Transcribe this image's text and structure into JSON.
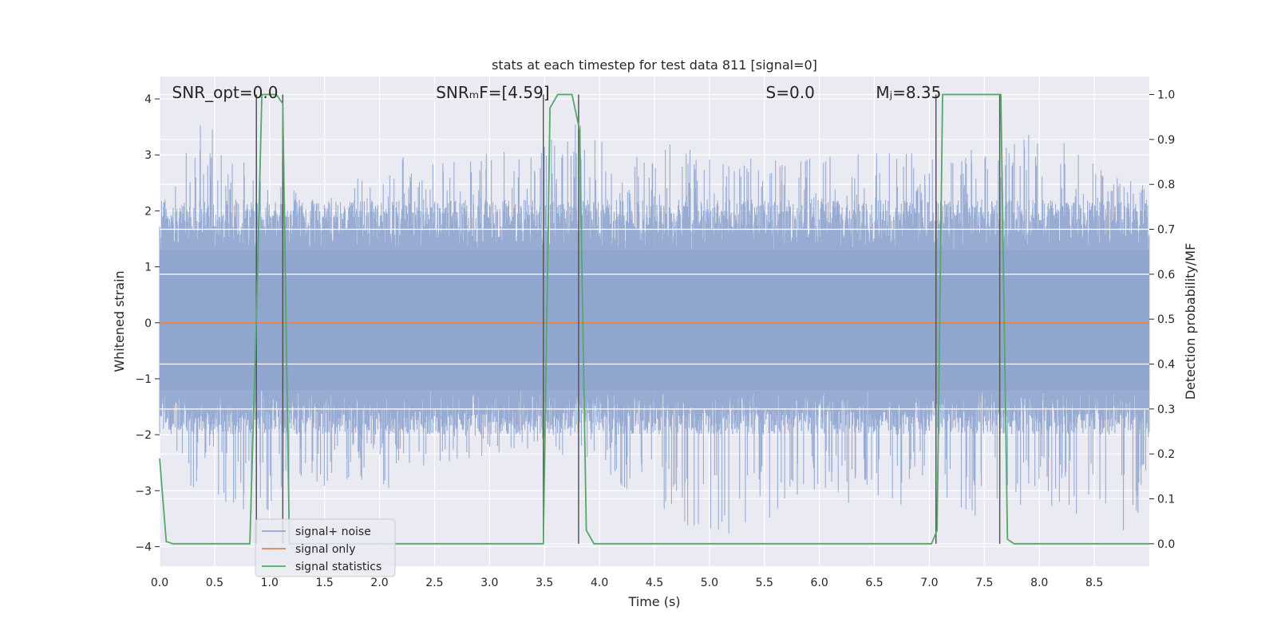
{
  "chart_data": {
    "type": "line",
    "title": "stats at each timestep for test data 811 [signal=0]",
    "xlabel": "Time (s)",
    "ylabel_left": "Whitened strain",
    "ylabel_right": "Detection probability/MF",
    "xlim": [
      0.0,
      9.0
    ],
    "ylim_left": [
      -4.35,
      4.4
    ],
    "ylim_right": [
      -0.05,
      1.04
    ],
    "x_ticks": [
      "0.0",
      "0.5",
      "1.0",
      "1.5",
      "2.0",
      "2.5",
      "3.0",
      "3.5",
      "4.0",
      "4.5",
      "5.0",
      "5.5",
      "6.0",
      "6.5",
      "7.0",
      "7.5",
      "8.0",
      "8.5"
    ],
    "y_left_ticks": [
      "4",
      "3",
      "2",
      "1",
      "0",
      "−1",
      "−2",
      "−3",
      "−4"
    ],
    "y_right_ticks": [
      "1.0",
      "0.9",
      "0.8",
      "0.7",
      "0.6",
      "0.5",
      "0.4",
      "0.3",
      "0.2",
      "0.1",
      "0.0"
    ],
    "grid": true,
    "legend_placement": "lower-left",
    "annotations": [
      {
        "text": "SNR_opt=0.0",
        "x": 0.2
      },
      {
        "text": "SNRₘF=[4.59]",
        "x": 2.6
      },
      {
        "text": "S=0.0",
        "x": 5.6
      },
      {
        "text": "Mⱼ=8.35",
        "x": 6.6
      }
    ],
    "series": [
      {
        "name": "signal+ noise",
        "color": "#8fa5cf",
        "description_values": "noise band",
        "envelope_upper": [
          [
            0.0,
            1.9
          ],
          [
            0.1,
            3.1
          ],
          [
            0.17,
            3.15
          ],
          [
            0.4,
            3.7
          ],
          [
            0.8,
            2.8
          ],
          [
            1.2,
            2.4
          ],
          [
            1.7,
            2.5
          ],
          [
            2.2,
            3.0
          ],
          [
            2.6,
            2.9
          ],
          [
            3.5,
            3.2
          ],
          [
            3.8,
            3.7
          ],
          [
            4.2,
            3.05
          ],
          [
            4.6,
            3.25
          ],
          [
            5.2,
            3.05
          ],
          [
            5.7,
            3.0
          ],
          [
            6.0,
            3.0
          ],
          [
            6.7,
            3.05
          ],
          [
            7.2,
            3.0
          ],
          [
            7.6,
            3.45
          ],
          [
            8.2,
            3.3
          ],
          [
            8.6,
            2.85
          ],
          [
            9.0,
            2.5
          ]
        ],
        "envelope_lower": [
          [
            0.0,
            -1.7
          ],
          [
            0.1,
            -2.3
          ],
          [
            0.2,
            -2.85
          ],
          [
            0.8,
            -3.5
          ],
          [
            1.2,
            -3.2
          ],
          [
            1.8,
            -2.8
          ],
          [
            2.1,
            -3.1
          ],
          [
            2.8,
            -2.6
          ],
          [
            3.5,
            -2.2
          ],
          [
            4.1,
            -3.0
          ],
          [
            4.6,
            -3.5
          ],
          [
            5.1,
            -3.85
          ],
          [
            6.1,
            -3.2
          ],
          [
            6.7,
            -3.4
          ],
          [
            7.0,
            -2.9
          ],
          [
            7.4,
            -3.5
          ],
          [
            8.0,
            -3.2
          ],
          [
            8.9,
            -3.95
          ],
          [
            9.0,
            -2.2
          ]
        ]
      },
      {
        "name": "signal only",
        "color": "#dd8452",
        "x": [
          0.0,
          9.0
        ],
        "y": [
          0.0,
          0.0
        ]
      },
      {
        "name": "signal statistics",
        "color": "#55a868",
        "axis": "right",
        "x": [
          0.0,
          0.06,
          0.12,
          0.82,
          0.88,
          0.93,
          1.06,
          1.12,
          1.18,
          3.49,
          3.55,
          3.62,
          3.75,
          3.82,
          3.88,
          3.95,
          7.02,
          7.07,
          7.12,
          7.59,
          7.65,
          7.71,
          7.77,
          9.0
        ],
        "y": [
          0.19,
          0.005,
          0.0,
          0.0,
          0.5,
          1.0,
          1.0,
          0.98,
          0.0,
          0.0,
          0.97,
          1.0,
          1.0,
          0.92,
          0.03,
          0.0,
          0.0,
          0.03,
          1.0,
          1.0,
          1.0,
          0.01,
          0.0,
          0.0
        ]
      }
    ],
    "vertical_markers": [
      0.88,
      1.12,
      3.49,
      3.81,
      7.06,
      7.64
    ]
  }
}
